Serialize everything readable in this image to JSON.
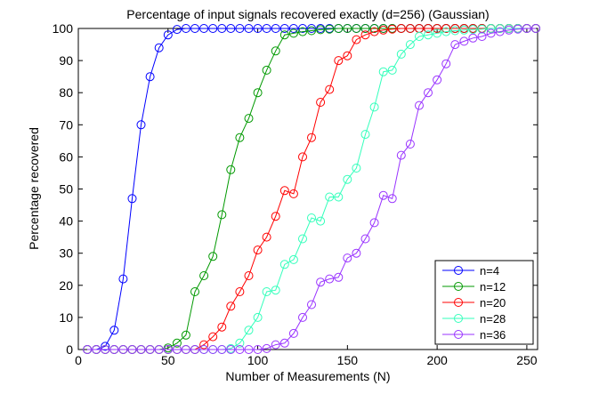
{
  "chart_data": {
    "type": "line",
    "title": "Percentage of input signals recovered exactly (d=256) (Gaussian)",
    "xlabel": "Number of Measurements (N)",
    "ylabel": "Percentage recovered",
    "xlim": [
      0,
      256
    ],
    "ylim": [
      0,
      100
    ],
    "xticks": [
      0,
      50,
      100,
      150,
      200,
      250
    ],
    "yticks": [
      0,
      10,
      20,
      30,
      40,
      50,
      60,
      70,
      80,
      90,
      100
    ],
    "legend_position": "bottom-right",
    "x": [
      5,
      10,
      15,
      20,
      25,
      30,
      35,
      40,
      45,
      50,
      55,
      60,
      65,
      70,
      75,
      80,
      85,
      90,
      95,
      100,
      105,
      110,
      115,
      120,
      125,
      130,
      135,
      140,
      145,
      150,
      155,
      160,
      165,
      170,
      175,
      180,
      185,
      190,
      195,
      200,
      205,
      210,
      215,
      220,
      225,
      230,
      235,
      240,
      245,
      250,
      255
    ],
    "series": [
      {
        "name": "n=4",
        "color": "#0000ff",
        "values": [
          0,
          0,
          1,
          6,
          22,
          47,
          70,
          85,
          94,
          98,
          99.7,
          100,
          100,
          100,
          100,
          100,
          100,
          100,
          100,
          100,
          100,
          100,
          100,
          100,
          100,
          100,
          100,
          100,
          100,
          100,
          100,
          100,
          100,
          100,
          100,
          100,
          100,
          100,
          100,
          100,
          100,
          100,
          100,
          100,
          100,
          100,
          100,
          100,
          100,
          100,
          100
        ]
      },
      {
        "name": "n=12",
        "color": "#009900",
        "values": [
          0,
          0,
          0,
          0,
          0,
          0,
          0,
          0,
          0,
          0.5,
          2,
          4.5,
          18,
          23,
          29,
          42,
          56,
          66,
          72,
          80,
          87,
          93,
          98,
          98.5,
          99,
          99.3,
          99.6,
          99.8,
          100,
          100,
          100,
          100,
          100,
          100,
          100,
          100,
          100,
          100,
          100,
          100,
          100,
          100,
          100,
          100,
          100,
          100,
          100,
          100,
          100,
          100,
          100
        ]
      },
      {
        "name": "n=20",
        "color": "#ff0000",
        "values": [
          0,
          0,
          0,
          0,
          0,
          0,
          0,
          0,
          0,
          0,
          0,
          0,
          0,
          1.5,
          4,
          7,
          13.5,
          18,
          23,
          31,
          35,
          41.5,
          49.5,
          48.5,
          60,
          66,
          77,
          81,
          90,
          91.5,
          96.5,
          98,
          99,
          99.5,
          99.8,
          100,
          100,
          100,
          100,
          100,
          100,
          100,
          100,
          100,
          100,
          100,
          100,
          100,
          100,
          100,
          100
        ]
      },
      {
        "name": "n=28",
        "color": "#33ffbb",
        "values": [
          0,
          0,
          0,
          0,
          0,
          0,
          0,
          0,
          0,
          0,
          0,
          0,
          0,
          0,
          0,
          0,
          0.3,
          2,
          6,
          10,
          18,
          18.5,
          26.5,
          28,
          34.5,
          41,
          40,
          47.5,
          47.5,
          53,
          56.5,
          67,
          75.5,
          86.5,
          87,
          92,
          95,
          97.5,
          98,
          98.5,
          99,
          99.3,
          99.5,
          99.7,
          99.8,
          100,
          100,
          100,
          100,
          100,
          100
        ]
      },
      {
        "name": "n=36",
        "color": "#9933ff",
        "values": [
          0,
          0,
          0,
          0,
          0,
          0,
          0,
          0,
          0,
          0,
          0,
          0,
          0,
          0,
          0,
          0,
          0,
          0,
          0,
          0,
          0.3,
          1.5,
          2,
          5,
          10,
          14,
          21,
          22,
          22.5,
          28.5,
          30,
          34.5,
          39.5,
          48,
          47,
          60.5,
          64,
          76,
          80,
          84,
          89,
          95,
          96,
          97,
          97.5,
          98.5,
          99,
          99.5,
          99.8,
          100,
          100
        ]
      }
    ]
  }
}
